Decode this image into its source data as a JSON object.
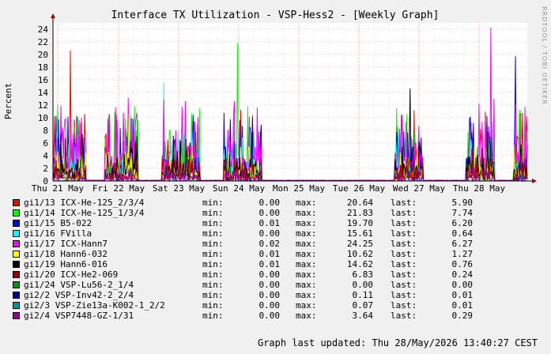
{
  "watermark": "RRDTOOL / TOBI OETIKER",
  "footer": "Graph last updated: Thu 28/May/2026 13:40:27 CEST",
  "legend_labels": {
    "min": "min:",
    "max": "max:",
    "last": "last:"
  },
  "chart_data": {
    "type": "line",
    "title": "Interface TX Utilization - VSP-Hess2 - [Weekly Graph]",
    "ylabel": "Percent",
    "ylim": [
      0,
      25
    ],
    "yticks": [
      0,
      2,
      4,
      6,
      8,
      10,
      12,
      14,
      16,
      18,
      20,
      22,
      24
    ],
    "xtick_labels": [
      "Thu 21 May",
      "Fri 22 May",
      "Sat 23 May",
      "Sun 24 May",
      "Mon 25 May",
      "Tue 26 May",
      "Wed 27 May",
      "Thu 28 May"
    ],
    "grid": true,
    "series": [
      {
        "name": "gi1/13 ICX-He-125_2/3/4",
        "color": "#ff0000",
        "min": "0.00",
        "max": "20.64",
        "last": "5.90"
      },
      {
        "name": "gi1/14 ICX-He-125_1/3/4",
        "color": "#00ff00",
        "min": "0.00",
        "max": "21.83",
        "last": "7.74"
      },
      {
        "name": "gi1/15 B5-022",
        "color": "#0000ff",
        "min": "0.01",
        "max": "19.70",
        "last": "6.20"
      },
      {
        "name": "gi1/16 FVilla",
        "color": "#00ffff",
        "min": "0.00",
        "max": "15.61",
        "last": "0.64"
      },
      {
        "name": "gi1/17 ICX-Hann7",
        "color": "#ff00ff",
        "min": "0.02",
        "max": "24.25",
        "last": "6.27"
      },
      {
        "name": "gi1/18 Hann6-032",
        "color": "#ffff00",
        "min": "0.01",
        "max": "10.62",
        "last": "1.27"
      },
      {
        "name": "gi1/19 Hann6-016",
        "color": "#000000",
        "min": "0.01",
        "max": "14.62",
        "last": "0.76"
      },
      {
        "name": "gi1/20 ICX-He2-069",
        "color": "#990000",
        "min": "0.00",
        "max": "6.83",
        "last": "0.24"
      },
      {
        "name": "gi1/24 VSP-Lu56-2_1/4",
        "color": "#009900",
        "min": "0.00",
        "max": "0.00",
        "last": "0.00"
      },
      {
        "name": "gi2/2 VSP-Inv42-2_2/4",
        "color": "#000099",
        "min": "0.00",
        "max": "0.11",
        "last": "0.01"
      },
      {
        "name": "gi2/3 VSP-Zie13a-K002-1_2/2",
        "color": "#009999",
        "min": "0.00",
        "max": "0.07",
        "last": "0.01"
      },
      {
        "name": "gi2/4 VSP7448-GZ-1/31",
        "color": "#990099",
        "min": "0.00",
        "max": "3.64",
        "last": "0.29"
      }
    ]
  }
}
